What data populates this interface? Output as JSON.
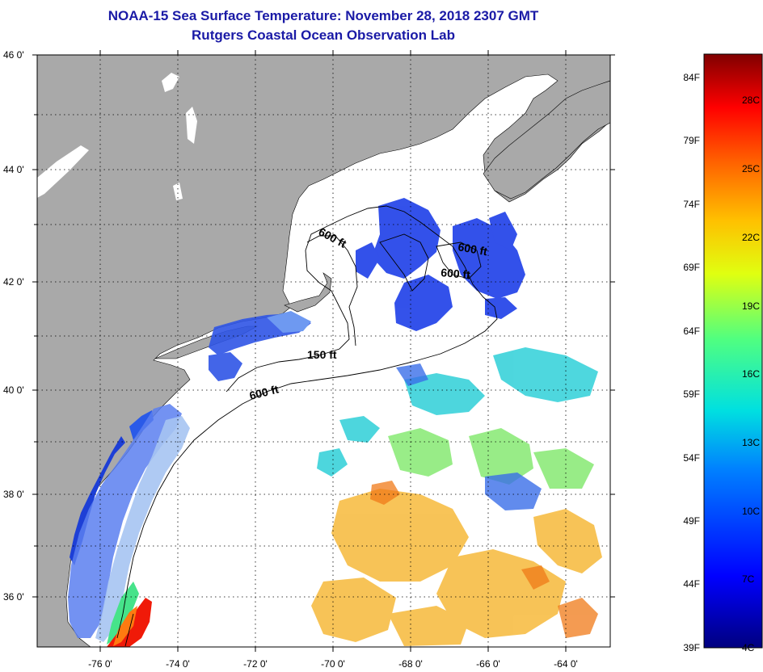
{
  "title": {
    "line1": "NOAA-15 Sea Surface Temperature:  November 28, 2018 2307 GMT",
    "line2": "Rutgers Coastal Ocean Observation Lab"
  },
  "map": {
    "lat_ticks": [
      "46 0'",
      "44 0'",
      "42 0'",
      "40 0'",
      "38 0'",
      "36 0'"
    ],
    "lon_ticks": [
      "-76 0'",
      "-74 0'",
      "-72 0'",
      "-70 0'",
      "-68 0'",
      "-66 0'",
      "-64 0'"
    ],
    "contour_labels": [
      "600 ft",
      "600 ft",
      "600 ft",
      "150 ft",
      "600 ft"
    ],
    "colors": {
      "land": "#a9a9a9",
      "ocean": "#ffffff",
      "frame": "#000000"
    }
  },
  "colorbar": {
    "f_labels": [
      "84F",
      "79F",
      "74F",
      "69F",
      "64F",
      "59F",
      "54F",
      "49F",
      "44F",
      "39F"
    ],
    "c_labels": [
      "28C",
      "25C",
      "22C",
      "19C",
      "16C",
      "13C",
      "10C",
      "7C",
      "4C"
    ]
  }
}
